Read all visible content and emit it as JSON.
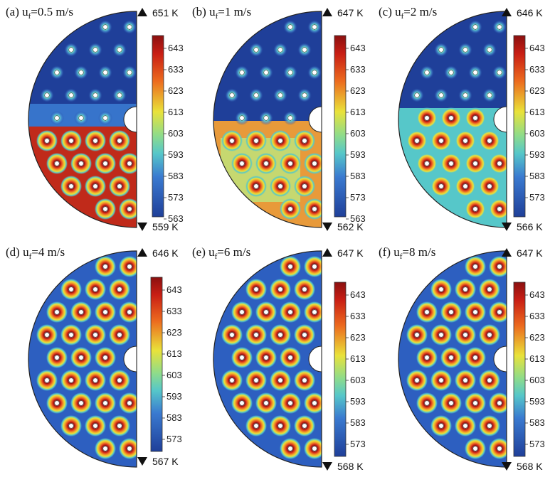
{
  "figure": {
    "panels": [
      {
        "id": "a",
        "label_prefix": "(a) u",
        "label_sub": "f",
        "label_value": "=0.5 m/s",
        "max_label": "651 K",
        "min_label": "559 K",
        "colorbar_ticks": [
          "643",
          "633",
          "623",
          "613",
          "603",
          "593",
          "583",
          "573",
          "563"
        ],
        "field_pattern": "hot-lower-half"
      },
      {
        "id": "b",
        "label_prefix": "(b) u",
        "label_sub": "f",
        "label_value": "=1 m/s",
        "max_label": "647 K",
        "min_label": "562 K",
        "colorbar_ticks": [
          "643",
          "633",
          "623",
          "613",
          "603",
          "593",
          "583",
          "573",
          "563"
        ],
        "field_pattern": "hot-lower-half-mixed"
      },
      {
        "id": "c",
        "label_prefix": "(c) u",
        "label_sub": "f",
        "label_value": "=2 m/s",
        "max_label": "646 K",
        "min_label": "566 K",
        "colorbar_ticks": [
          "643",
          "633",
          "623",
          "613",
          "603",
          "593",
          "583",
          "573"
        ],
        "field_pattern": "warm-lower-half"
      },
      {
        "id": "d",
        "label_prefix": "(d) u",
        "label_sub": "f",
        "label_value": "=4 m/s",
        "max_label": "646 K",
        "min_label": "567 K",
        "colorbar_ticks": [
          "643",
          "633",
          "623",
          "613",
          "603",
          "593",
          "583",
          "573"
        ],
        "field_pattern": "hot-spots"
      },
      {
        "id": "e",
        "label_prefix": "(e) u",
        "label_sub": "f",
        "label_value": "=6 m/s",
        "max_label": "647 K",
        "min_label": "568 K",
        "colorbar_ticks": [
          "643",
          "633",
          "623",
          "613",
          "603",
          "593",
          "583",
          "573"
        ],
        "field_pattern": "hot-spots"
      },
      {
        "id": "f",
        "label_prefix": "(f) u",
        "label_sub": "f",
        "label_value": "=8 m/s",
        "max_label": "647 K",
        "min_label": "568 K",
        "colorbar_ticks": [
          "643",
          "633",
          "623",
          "613",
          "603",
          "593",
          "583",
          "573"
        ],
        "field_pattern": "hot-spots"
      }
    ],
    "colors": {
      "cold": "#1f3f99",
      "cool": "#3a7ad0",
      "mid": "#56c7c9",
      "warm": "#e9e23a",
      "hot": "#e23a1e",
      "max": "#8b1010"
    }
  }
}
